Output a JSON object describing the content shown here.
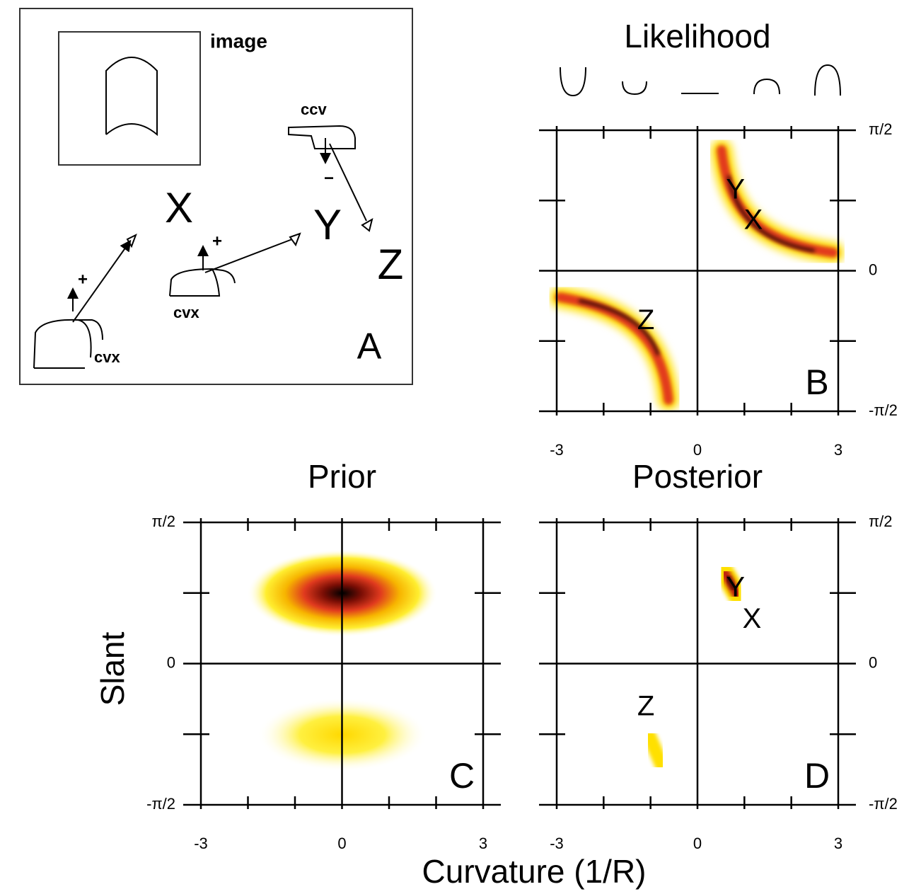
{
  "panel_a": {
    "label": "A",
    "image_label": "image",
    "ccv_label": "ccv",
    "cvx_labels": [
      "cvx",
      "cvx"
    ],
    "signs": [
      "+",
      "+",
      "−"
    ],
    "viewpoints": [
      "X",
      "Y",
      "Z"
    ]
  },
  "chart_data": [
    {
      "type": "heatmap",
      "title": "Likelihood",
      "panel": "B",
      "xlim": [
        -3,
        3
      ],
      "xticks": [
        -3,
        0,
        3
      ],
      "x_minor_ticks": [
        -2,
        -1,
        1,
        2
      ],
      "ylim": [
        -1.5708,
        1.5708
      ],
      "yticks": [
        {
          "value": 1.5708,
          "label": "π/2"
        },
        0,
        {
          "value": -1.5708,
          "label": "-π/2"
        }
      ],
      "y_minor_ticks": [
        0.7854,
        -0.7854
      ],
      "points": [
        {
          "label": "Y",
          "x": 0.81,
          "y": 0.89
        },
        {
          "label": "X",
          "x": 1.19,
          "y": 0.55
        },
        {
          "label": "Z",
          "x": -1.1,
          "y": -0.57
        }
      ]
    },
    {
      "type": "heatmap",
      "title": "Prior",
      "panel": "C",
      "xlabel": "Curvature (1/R)",
      "ylabel": "Slant",
      "xlim": [
        -3,
        3
      ],
      "xticks": [
        -3,
        0,
        3
      ],
      "x_minor_ticks": [
        -2,
        -1,
        1,
        2
      ],
      "ylim": [
        -1.5708,
        1.5708
      ],
      "yticks": [
        {
          "value": 1.5708,
          "label": "π/2"
        },
        0,
        {
          "value": -1.5708,
          "label": "-π/2"
        }
      ],
      "y_minor_ticks": [
        0.7854,
        -0.7854
      ],
      "points": []
    },
    {
      "type": "heatmap",
      "title": "Posterior",
      "panel": "D",
      "xlim": [
        -3,
        3
      ],
      "xticks": [
        -3,
        0,
        3
      ],
      "x_minor_ticks": [
        -2,
        -1,
        1,
        2
      ],
      "ylim": [
        -1.5708,
        1.5708
      ],
      "yticks": [
        {
          "value": 1.5708,
          "label": "π/2"
        },
        0,
        {
          "value": -1.5708,
          "label": "-π/2"
        }
      ],
      "y_minor_ticks": [
        0.7854,
        -0.7854
      ],
      "points": [
        {
          "label": "Y",
          "x": 0.81,
          "y": 0.83
        },
        {
          "label": "X",
          "x": 1.16,
          "y": 0.48
        },
        {
          "label": "Z",
          "x": -1.1,
          "y": -0.49
        }
      ]
    }
  ]
}
